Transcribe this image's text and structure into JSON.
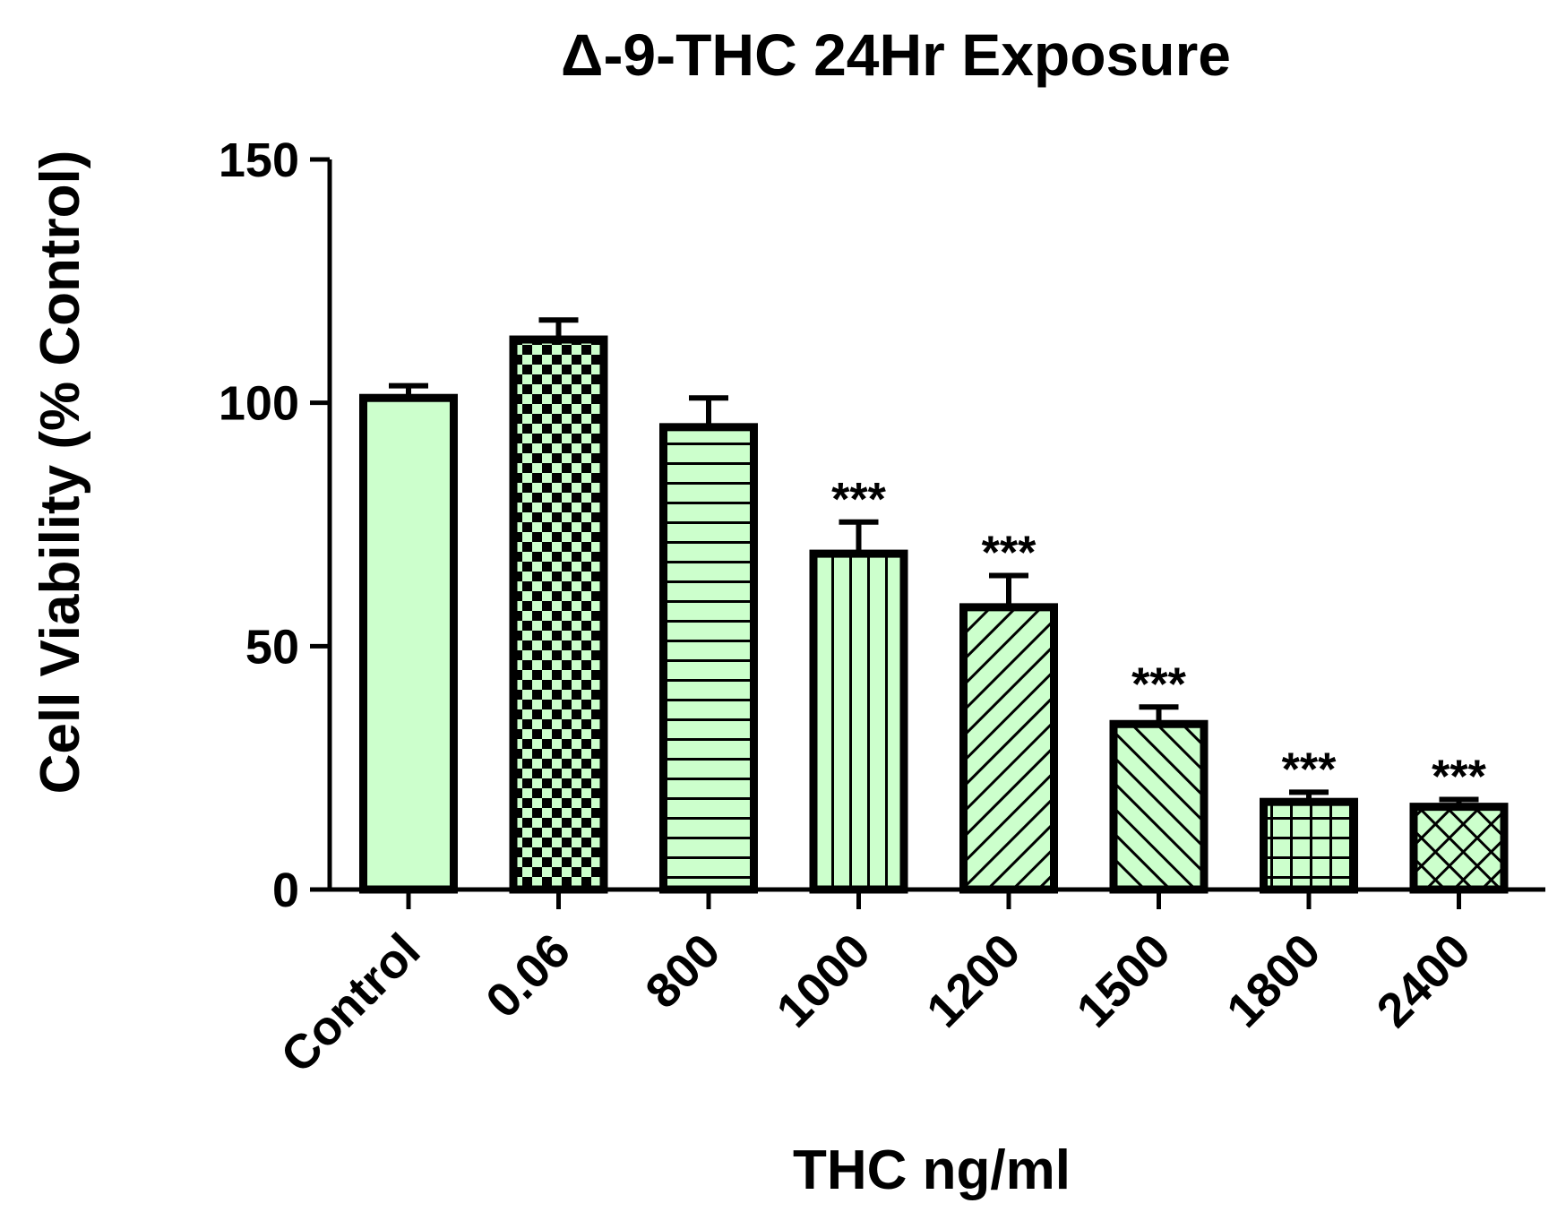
{
  "chart_data": {
    "type": "bar",
    "title": "Δ-9-THC 24Hr Exposure",
    "xlabel": "THC ng/ml",
    "ylabel": "Cell Viability (% Control)",
    "ylim": [
      0,
      150
    ],
    "yticks": [
      0,
      50,
      100,
      150
    ],
    "categories": [
      "Control",
      "0.06",
      "800",
      "1000",
      "1200",
      "1500",
      "1800",
      "2400"
    ],
    "values": [
      101,
      113,
      95,
      69,
      58,
      34,
      18,
      17
    ],
    "errors": [
      2.5,
      4,
      6,
      6.5,
      6.5,
      3.5,
      2,
      1.5
    ],
    "significance": [
      "",
      "",
      "",
      "***",
      "***",
      "***",
      "***",
      "***"
    ],
    "patterns": [
      "solid",
      "checker",
      "horizontal",
      "vertical",
      "diagonal-up",
      "diagonal-down",
      "grid",
      "crosshatch"
    ],
    "fill_color": "#ccffcc",
    "stroke_color": "#000000",
    "grid": false,
    "legend": false
  }
}
